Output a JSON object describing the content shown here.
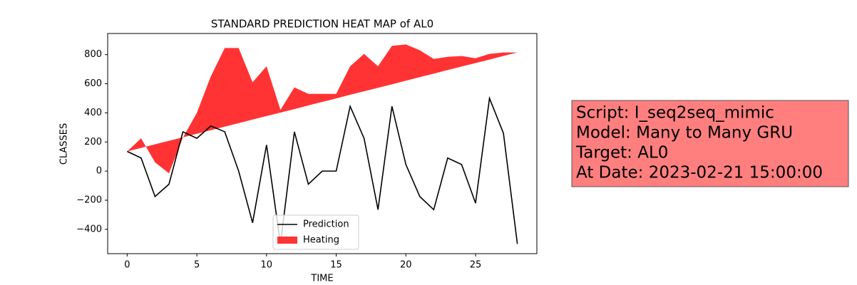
{
  "chart_data": {
    "type": "line",
    "title": "STANDARD PREDICTION HEAT MAP of AL0",
    "x_label": "TIME",
    "y_label": "CLASSES",
    "x": [
      0,
      1,
      2,
      3,
      4,
      5,
      6,
      7,
      8,
      9,
      10,
      11,
      12,
      13,
      14,
      15,
      16,
      17,
      18,
      19,
      20,
      21,
      22,
      23,
      24,
      25,
      26,
      27,
      28
    ],
    "series": [
      {
        "name": "Heating",
        "type": "band",
        "color": "#ff3333",
        "values": [
          135,
          225,
          60,
          -15,
          230,
          400,
          650,
          845,
          845,
          610,
          720,
          420,
          575,
          530,
          530,
          530,
          720,
          805,
          720,
          860,
          870,
          830,
          770,
          785,
          790,
          775,
          805,
          815,
          815
        ],
        "lower": [
          135,
          159,
          184,
          208,
          232,
          256,
          281,
          305,
          329,
          354,
          378,
          402,
          426,
          451,
          475,
          499,
          524,
          548,
          572,
          596,
          621,
          645,
          669,
          694,
          718,
          742,
          766,
          791,
          815
        ]
      },
      {
        "name": "Prediction",
        "type": "line",
        "color": "#000000",
        "values": [
          135,
          90,
          -175,
          -90,
          270,
          225,
          310,
          270,
          0,
          -355,
          180,
          -500,
          270,
          -90,
          0,
          0,
          445,
          225,
          -265,
          445,
          45,
          -175,
          -265,
          90,
          45,
          -220,
          500,
          260,
          -500
        ]
      }
    ],
    "legend_order": [
      1,
      0
    ],
    "xlim": [
      -1.4,
      29.4
    ],
    "xticks": [
      0,
      5,
      10,
      15,
      20,
      25
    ],
    "ylim": [
      -567,
      945
    ],
    "yticks": [
      {
        "value": -400,
        "label": "−400"
      },
      {
        "value": -200,
        "label": "−200"
      },
      0,
      200,
      400,
      600,
      800
    ],
    "legend": "lower center"
  },
  "info_box": {
    "lines": [
      "Script: I_seq2seq_mimic",
      "Model: Many to Many GRU",
      "Target: AL0",
      "At Date: 2023-02-21 15:00:00"
    ],
    "color": "#ff7f7f"
  }
}
